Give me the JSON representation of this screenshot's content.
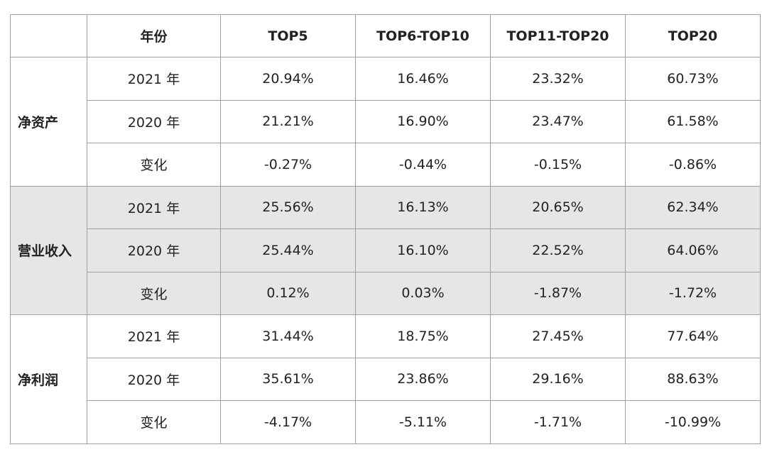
{
  "table": {
    "header": [
      "年份",
      "TOP5",
      "TOP6-TOP10",
      "TOP11-TOP20",
      "TOP20"
    ],
    "groups": [
      {
        "name": "净资产",
        "rows": [
          [
            "2021 年",
            "20.94%",
            "16.46%",
            "23.32%",
            "60.73%"
          ],
          [
            "2020 年",
            "21.21%",
            "16.90%",
            "23.47%",
            "61.58%"
          ],
          [
            "变化",
            "-0.27%",
            "-0.44%",
            "-0.15%",
            "-0.86%"
          ]
        ]
      },
      {
        "name": "营业收入",
        "rows": [
          [
            "2021 年",
            "25.56%",
            "16.13%",
            "20.65%",
            "62.34%"
          ],
          [
            "2020 年",
            "25.44%",
            "16.10%",
            "22.52%",
            "64.06%"
          ],
          [
            "变化",
            "0.12%",
            "0.03%",
            "-1.87%",
            "-1.72%"
          ]
        ]
      },
      {
        "name": "净利润",
        "rows": [
          [
            "2021 年",
            "31.44%",
            "18.75%",
            "27.45%",
            "77.64%"
          ],
          [
            "2020 年",
            "35.61%",
            "23.86%",
            "29.16%",
            "88.63%"
          ],
          [
            "变化",
            "-4.17%",
            "-5.11%",
            "-1.71%",
            "-10.99%"
          ]
        ]
      }
    ]
  }
}
